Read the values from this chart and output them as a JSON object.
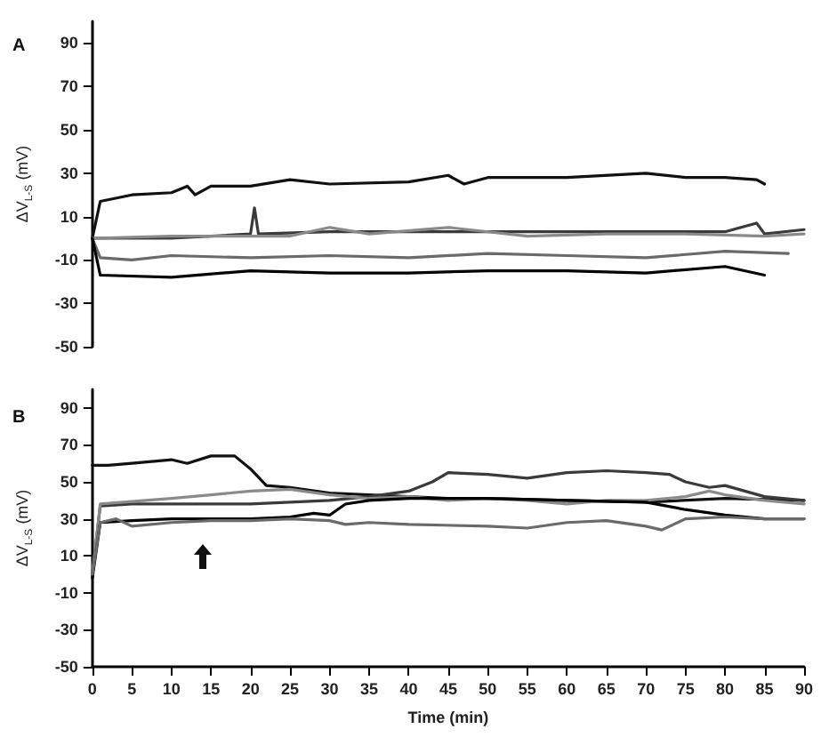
{
  "chart_data": [
    {
      "type": "line",
      "title": "A",
      "ylabel": "ΔV$_{L-S}$ (mV)",
      "xlim": [
        0,
        90
      ],
      "ylim": [
        -50,
        100
      ],
      "yticks": [
        -50,
        -30,
        -10,
        10,
        30,
        50,
        70,
        90
      ],
      "tick_labels": "y",
      "marker": "none",
      "line_style": "solid",
      "series": [
        {
          "color": "#111111",
          "x": [
            0,
            1,
            5,
            10,
            12,
            13,
            15,
            20,
            25,
            30,
            40,
            45,
            47,
            50,
            55,
            60,
            70,
            75,
            80,
            84,
            85
          ],
          "values": [
            0,
            17,
            20,
            21,
            24,
            20,
            24,
            24,
            27,
            25,
            26,
            29,
            25,
            28,
            28,
            28,
            30,
            28,
            28,
            27,
            25
          ]
        },
        {
          "color": "#3a3a3a",
          "x": [
            0,
            10,
            20,
            20.5,
            21,
            30,
            40,
            50,
            60,
            70,
            80,
            84,
            85,
            90
          ],
          "values": [
            0,
            0,
            2,
            14,
            2,
            3,
            3,
            3,
            3,
            3,
            3,
            7,
            2,
            4
          ]
        },
        {
          "color": "#8a8a8a",
          "x": [
            0,
            10,
            25,
            30,
            35,
            45,
            55,
            65,
            75,
            85,
            90
          ],
          "values": [
            0,
            1,
            1,
            5,
            2,
            5,
            1,
            2,
            2,
            1,
            2
          ]
        },
        {
          "color": "#6a6a6a",
          "x": [
            0,
            1,
            5,
            10,
            20,
            30,
            40,
            50,
            60,
            70,
            80,
            88
          ],
          "values": [
            0,
            -9,
            -10,
            -8,
            -9,
            -8,
            -9,
            -7,
            -8,
            -9,
            -6,
            -7
          ]
        },
        {
          "color": "#000000",
          "x": [
            0,
            1,
            10,
            20,
            30,
            40,
            50,
            60,
            70,
            80,
            85
          ],
          "values": [
            0,
            -17,
            -18,
            -15,
            -16,
            -16,
            -15,
            -15,
            -16,
            -13,
            -17
          ]
        }
      ]
    },
    {
      "type": "line",
      "title": "B",
      "ylabel": "ΔV$_{L-S}$ (mV)",
      "xlabel": "Time (min)",
      "xlim": [
        0,
        90
      ],
      "ylim": [
        -50,
        100
      ],
      "yticks": [
        -50,
        -30,
        -10,
        10,
        30,
        50,
        70,
        90
      ],
      "xticks": [
        0,
        5,
        10,
        15,
        20,
        25,
        30,
        35,
        40,
        45,
        50,
        55,
        60,
        65,
        70,
        75,
        80,
        85,
        90
      ],
      "marker": "none",
      "line_style": "solid",
      "series": [
        {
          "color": "#111111",
          "x": [
            0,
            2,
            5,
            10,
            12,
            15,
            18,
            20,
            22,
            25,
            30,
            35,
            40,
            45,
            50,
            60,
            70,
            80,
            90
          ],
          "values": [
            59,
            59,
            60,
            62,
            60,
            64,
            64,
            57,
            48,
            47,
            44,
            43,
            42,
            41,
            41,
            40,
            39,
            41,
            40
          ]
        },
        {
          "color": "#3a3a3a",
          "x": [
            0,
            1,
            5,
            10,
            20,
            30,
            35,
            40,
            43,
            45,
            50,
            55,
            60,
            65,
            70,
            73,
            75,
            78,
            80,
            85,
            90
          ],
          "values": [
            0,
            37,
            38,
            38,
            38,
            40,
            42,
            45,
            50,
            55,
            54,
            52,
            55,
            56,
            55,
            54,
            50,
            47,
            48,
            42,
            40
          ]
        },
        {
          "color": "#8a8a8a",
          "x": [
            0,
            1,
            10,
            15,
            20,
            25,
            30,
            35,
            40,
            45,
            50,
            55,
            60,
            65,
            70,
            75,
            78,
            80,
            85,
            90
          ],
          "values": [
            0,
            38,
            41,
            43,
            45,
            46,
            43,
            41,
            42,
            40,
            41,
            40,
            38,
            40,
            40,
            42,
            45,
            43,
            40,
            38
          ]
        },
        {
          "color": "#000000",
          "x": [
            0,
            1,
            5,
            10,
            15,
            20,
            25,
            28,
            30,
            32,
            35,
            40,
            50,
            60,
            70,
            75,
            80,
            85,
            90
          ],
          "values": [
            -2,
            28,
            29,
            30,
            30,
            30,
            31,
            33,
            32,
            38,
            40,
            41,
            41,
            40,
            39,
            35,
            32,
            30,
            30
          ]
        },
        {
          "color": "#6a6a6a",
          "x": [
            0,
            1,
            3,
            5,
            10,
            15,
            20,
            25,
            30,
            32,
            35,
            40,
            50,
            55,
            60,
            65,
            70,
            72,
            75,
            80,
            85,
            90
          ],
          "values": [
            0,
            28,
            30,
            26,
            28,
            29,
            29,
            30,
            29,
            27,
            28,
            27,
            26,
            25,
            28,
            29,
            26,
            24,
            30,
            31,
            30,
            30
          ]
        }
      ]
    }
  ]
}
